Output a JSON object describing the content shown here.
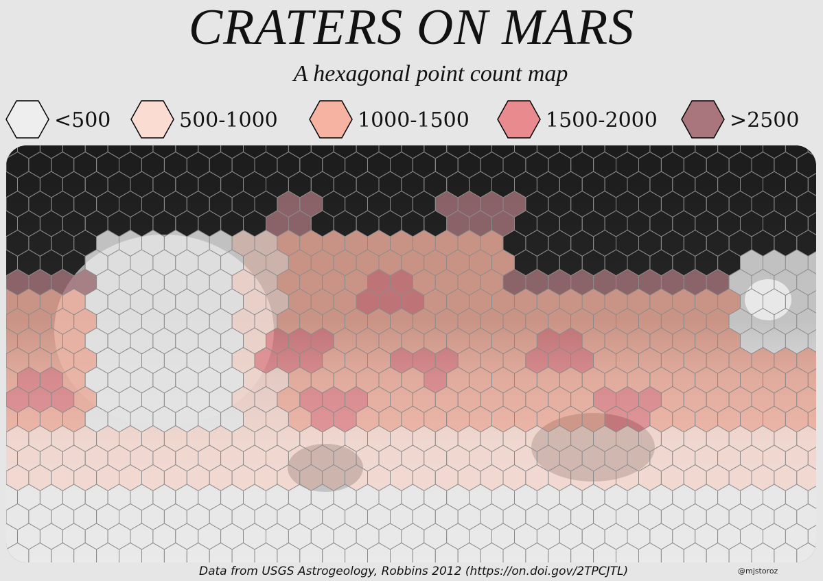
{
  "title": "CRATERS ON MARS",
  "subtitle": "A hexagonal point count map",
  "legend": [
    {
      "label": "<500",
      "color": "#eeeeee"
    },
    {
      "label": "500-1000",
      "color": "#fbdcd3"
    },
    {
      "label": "1000-1500",
      "color": "#f7b3a2"
    },
    {
      "label": "1500-2000",
      "color": "#e98b8e"
    },
    {
      "label": ">2500",
      "color": "#a8767c"
    }
  ],
  "credit": "Data from USGS Astrogeology, Robbins 2012 (https://on.doi.gov/2TPCJTL)",
  "handle": "@mjstoroz",
  "colors": {
    "background": "#e6e6e6",
    "hex_outline": "#8a8a8a",
    "bin_under_500": "#eeeeee",
    "bin_500_1000": "#fbdcd3",
    "bin_1000_1500": "#f7b3a2",
    "bin_1500_2000": "#e98b8e",
    "bin_over_2500": "#a8767c",
    "dark_terrain": "#1c1c1c",
    "light_terrain": "#d2d2d2"
  }
}
